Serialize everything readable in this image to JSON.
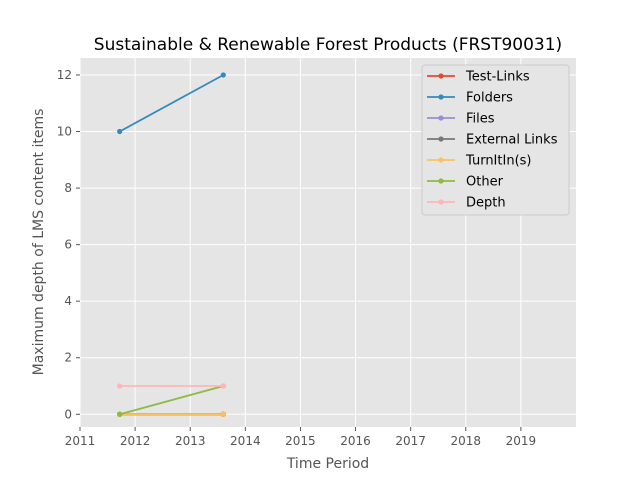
{
  "chart_data": {
    "type": "line",
    "title": "Sustainable & Renewable Forest Products (FRST90031)",
    "xlabel": "Time Period",
    "ylabel": "Maximum depth of LMS content items",
    "xlim": [
      2011,
      2020
    ],
    "ylim": [
      -0.45,
      12.6
    ],
    "x_ticks": [
      "2011",
      "2012",
      "2013",
      "2014",
      "2015",
      "2016",
      "2017",
      "2018",
      "2019"
    ],
    "x_tick_values": [
      2011,
      2012,
      2013,
      2014,
      2015,
      2016,
      2017,
      2018,
      2019
    ],
    "y_ticks": [
      "0",
      "2",
      "4",
      "6",
      "8",
      "10",
      "12"
    ],
    "y_tick_values": [
      0,
      2,
      4,
      6,
      8,
      10,
      12
    ],
    "grid": true,
    "legend_position": "top-right",
    "x": [
      2011.72,
      2013.6
    ],
    "series": [
      {
        "name": "Test-Links",
        "color": "#E24A33",
        "values": [
          0,
          0
        ]
      },
      {
        "name": "Folders",
        "color": "#348ABD",
        "values": [
          10,
          12
        ]
      },
      {
        "name": "Files",
        "color": "#988ED5",
        "values": [
          0,
          0
        ]
      },
      {
        "name": "External Links",
        "color": "#777777",
        "values": [
          0,
          0
        ]
      },
      {
        "name": "TurnItIn(s)",
        "color": "#FBC15E",
        "values": [
          0,
          0
        ]
      },
      {
        "name": "Other",
        "color": "#8EBA42",
        "values": [
          0,
          1
        ]
      },
      {
        "name": "Depth",
        "color": "#FFB5B8",
        "values": [
          1,
          1
        ]
      }
    ]
  }
}
